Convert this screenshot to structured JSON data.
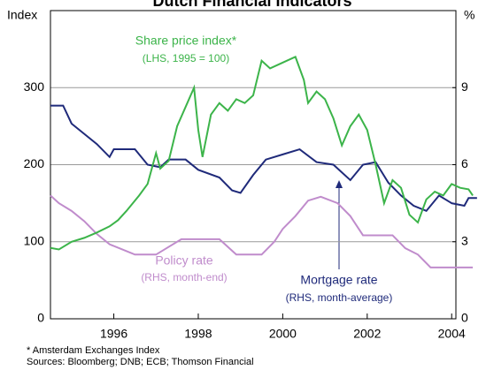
{
  "chart_data": {
    "type": "line",
    "title": "Dutch Financial Indicators",
    "ylabel": "Index",
    "y2label": "%",
    "xlim": [
      1994.5,
      2004.1
    ],
    "xticks": [
      1996,
      1998,
      2000,
      2002,
      2004
    ],
    "ylim": [
      0,
      400
    ],
    "yticks": [
      0,
      100,
      200,
      300
    ],
    "y2lim": [
      0,
      12
    ],
    "y2ticks": [
      0,
      3,
      6,
      9
    ],
    "grid": true,
    "series": [
      {
        "name": "Share price index*",
        "color": "#3cb44a",
        "axis": "y",
        "x": [
          1994.5,
          1994.7,
          1995.0,
          1995.3,
          1995.6,
          1995.9,
          1996.1,
          1996.3,
          1996.6,
          1996.8,
          1997.0,
          1997.1,
          1997.3,
          1997.5,
          1997.7,
          1997.9,
          1998.0,
          1998.1,
          1998.3,
          1998.5,
          1998.7,
          1998.9,
          1999.1,
          1999.3,
          1999.5,
          1999.7,
          1999.9,
          2000.1,
          2000.3,
          2000.5,
          2000.6,
          2000.8,
          2001.0,
          2001.2,
          2001.4,
          2001.6,
          2001.8,
          2002.0,
          2002.2,
          2002.4,
          2002.6,
          2002.8,
          2003.0,
          2003.2,
          2003.4,
          2003.6,
          2003.8,
          2004.0,
          2004.2,
          2004.4,
          2004.5
        ],
        "values": [
          92,
          90,
          100,
          105,
          112,
          120,
          128,
          140,
          160,
          175,
          215,
          195,
          205,
          250,
          275,
          300,
          245,
          210,
          265,
          280,
          270,
          285,
          280,
          290,
          335,
          325,
          330,
          335,
          340,
          310,
          280,
          295,
          285,
          260,
          225,
          250,
          265,
          245,
          200,
          150,
          180,
          170,
          135,
          125,
          155,
          165,
          160,
          175,
          170,
          168,
          160
        ]
      },
      {
        "name": "Mortgage rate",
        "color": "#1f2a7a",
        "axis": "y2",
        "x": [
          1994.5,
          1994.8,
          1995.0,
          1995.3,
          1995.6,
          1995.9,
          1996.0,
          1996.5,
          1996.8,
          1997.1,
          1997.3,
          1997.7,
          1998.0,
          1998.5,
          1998.8,
          1999.0,
          1999.3,
          1999.6,
          2000.0,
          2000.4,
          2000.8,
          2001.2,
          2001.6,
          2001.9,
          2002.2,
          2002.5,
          2002.8,
          2003.1,
          2003.4,
          2003.7,
          2004.0,
          2004.3,
          2004.4,
          2004.6
        ],
        "values": [
          8.3,
          8.3,
          7.6,
          7.2,
          6.8,
          6.3,
          6.6,
          6.6,
          6.0,
          5.9,
          6.2,
          6.2,
          5.8,
          5.5,
          5.0,
          4.9,
          5.6,
          6.2,
          6.4,
          6.6,
          6.1,
          6.0,
          5.4,
          6.0,
          6.1,
          5.3,
          4.8,
          4.4,
          4.2,
          4.8,
          4.5,
          4.4,
          4.7,
          4.7
        ]
      },
      {
        "name": "Policy rate",
        "color": "#c08ccc",
        "axis": "y2",
        "x": [
          1994.5,
          1994.7,
          1995.0,
          1995.3,
          1995.6,
          1995.9,
          1996.2,
          1996.5,
          1997.0,
          1997.3,
          1997.6,
          1998.0,
          1998.5,
          1998.9,
          1999.5,
          1999.8,
          2000.0,
          2000.3,
          2000.6,
          2000.9,
          2001.3,
          2001.6,
          2001.8,
          2001.9,
          2002.6,
          2002.9,
          2003.2,
          2003.5,
          2004.5
        ],
        "values": [
          4.8,
          4.5,
          4.2,
          3.8,
          3.3,
          2.9,
          2.7,
          2.5,
          2.5,
          2.8,
          3.1,
          3.1,
          3.1,
          2.5,
          2.5,
          3.0,
          3.5,
          4.0,
          4.6,
          4.75,
          4.5,
          4.0,
          3.5,
          3.25,
          3.25,
          2.75,
          2.5,
          2.0,
          2.0
        ]
      }
    ],
    "annotations": [
      "(LHS, 1995 = 100)",
      "(RHS, month-end)",
      "(RHS, month-average)"
    ],
    "footnotes": [
      "* Amsterdam Exchanges Index",
      "Sources: Bloomberg; DNB; ECB; Thomson Financial"
    ]
  }
}
